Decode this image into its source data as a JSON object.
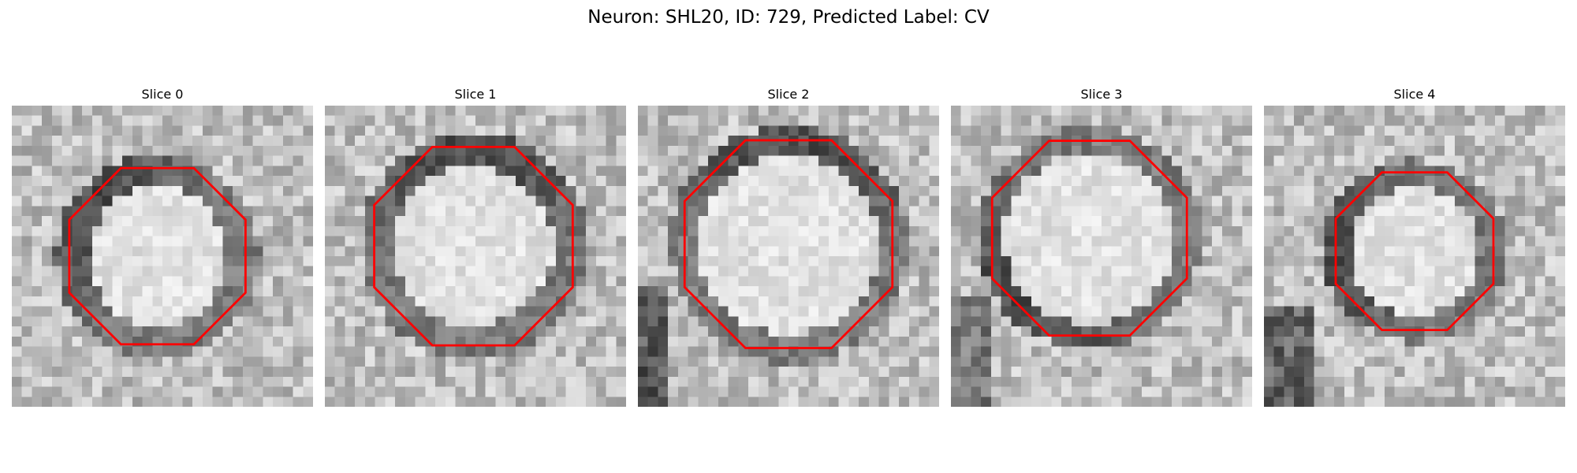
{
  "figure": {
    "title": "Neuron: SHL20, ID: 729, Predicted Label: CV"
  },
  "panels": [
    {
      "title": "Slice 0",
      "membrane_side": "upper-left",
      "shape": "octagon"
    },
    {
      "title": "Slice 1",
      "membrane_side": "upper",
      "shape": "octagon"
    },
    {
      "title": "Slice 2",
      "membrane_side": "upper",
      "shape": "octagon"
    },
    {
      "title": "Slice 3",
      "membrane_side": "lower-left",
      "shape": "octagon"
    },
    {
      "title": "Slice 4",
      "membrane_side": "left",
      "shape": "octagon"
    }
  ],
  "colors": {
    "contour": "#ff0000",
    "background": "#ffffff"
  },
  "colormap": "gray"
}
